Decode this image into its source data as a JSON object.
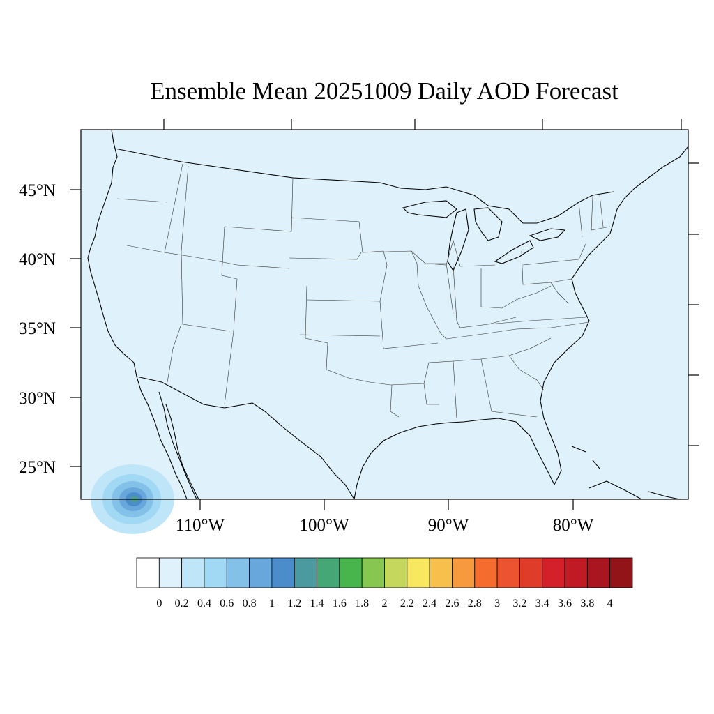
{
  "title": "Ensemble Mean 20251009 Daily AOD Forecast",
  "map": {
    "projection": "lambert-conformal",
    "region": "CONUS",
    "background_fill": "#dff1fb",
    "boundaries": [
      "coastlines",
      "us-state-lines",
      "international-borders",
      "great-lakes"
    ],
    "hotspot": {
      "region": "off Baja California, southwest corner",
      "max_aod_level": "1.6–1.8"
    }
  },
  "axes": {
    "lat_labels": [
      "45°N",
      "40°N",
      "35°N",
      "30°N",
      "25°N"
    ],
    "lon_labels": [
      "110°W",
      "100°W",
      "90°W",
      "80°W"
    ]
  },
  "colorbar": {
    "labels": [
      "0",
      "0.2",
      "0.4",
      "0.6",
      "0.8",
      "1",
      "1.2",
      "1.4",
      "1.6",
      "1.8",
      "2",
      "2.2",
      "2.4",
      "2.6",
      "2.8",
      "3",
      "3.2",
      "3.4",
      "3.6",
      "3.8",
      "4"
    ],
    "colors": [
      "#ffffff",
      "#dff1fb",
      "#bfe6f8",
      "#a1d8f4",
      "#84c1e8",
      "#68a7dc",
      "#4b8dcb",
      "#4b9aa0",
      "#45a776",
      "#48b44c",
      "#87c650",
      "#c5d75c",
      "#f7e860",
      "#f7c04d",
      "#f69a3d",
      "#f46d2f",
      "#ec5331",
      "#e03c2a",
      "#d32029",
      "#c01a25",
      "#a9161f",
      "#931418"
    ]
  }
}
